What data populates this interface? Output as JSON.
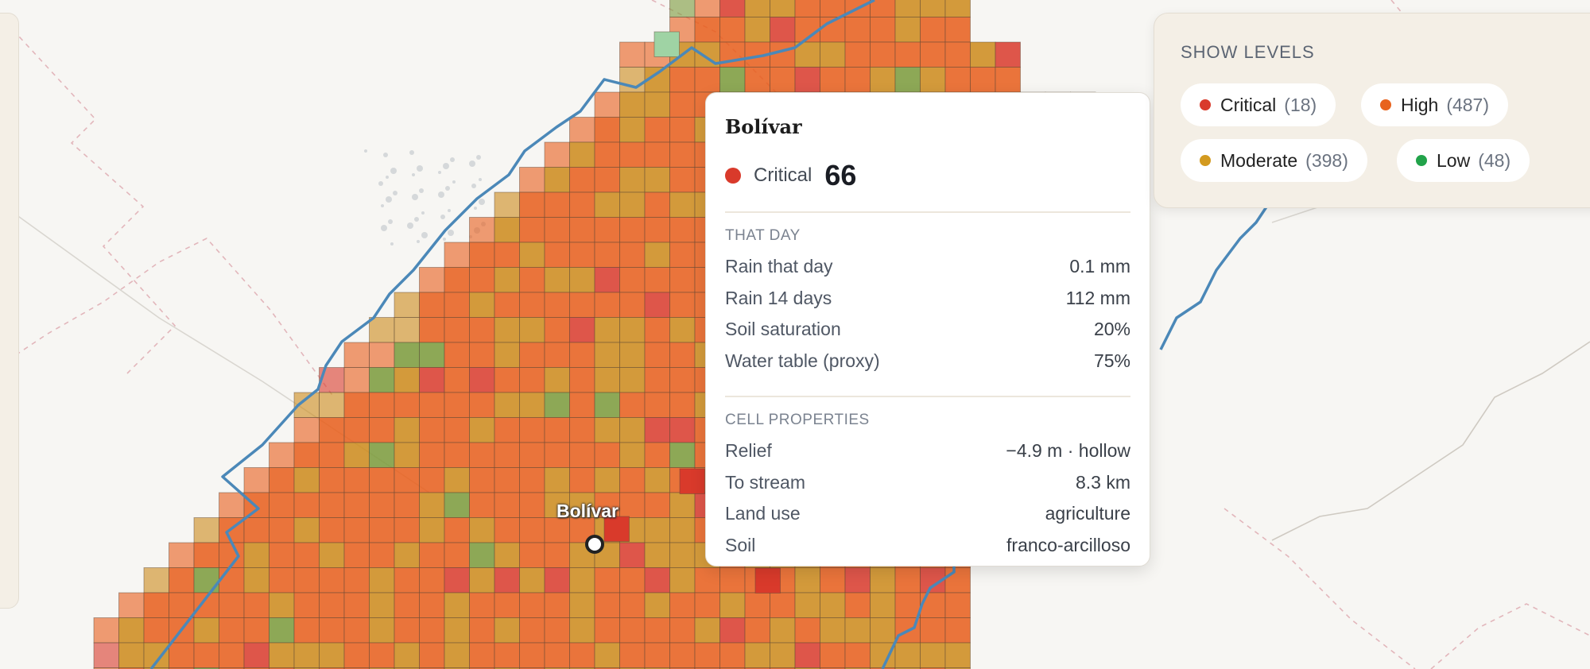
{
  "map": {
    "town_label": "Bolívar",
    "colors": {
      "critical": "#d93a2b",
      "high": "#e85d1a",
      "moderate": "#cc8a1a",
      "low": "#22a34a",
      "boundary": "#4b88b8",
      "background": "#f7f6f3"
    }
  },
  "popup": {
    "title": "Bolívar",
    "risk_level": "Critical",
    "risk_score": "66",
    "that_day": {
      "heading": "THAT DAY",
      "rows": [
        {
          "label": "Rain that day",
          "value": "0.1 mm"
        },
        {
          "label": "Rain 14 days",
          "value": "112 mm"
        },
        {
          "label": "Soil saturation",
          "value": "20%"
        },
        {
          "label": "Water table (proxy)",
          "value": "75%"
        }
      ]
    },
    "cell_properties": {
      "heading": "CELL PROPERTIES",
      "rows": [
        {
          "label": "Relief",
          "value": "−4.9 m · hollow"
        },
        {
          "label": "To stream",
          "value": "8.3 km"
        },
        {
          "label": "Land use",
          "value": "agriculture"
        },
        {
          "label": "Soil",
          "value": "franco-arcilloso"
        }
      ]
    }
  },
  "legend": {
    "title": "SHOW LEVELS",
    "items": [
      {
        "label": "Critical",
        "count": "(18)",
        "color": "#d93a2b"
      },
      {
        "label": "High",
        "count": "(487)",
        "color": "#e8631e"
      },
      {
        "label": "Moderate",
        "count": "(398)",
        "color": "#d39a1f"
      },
      {
        "label": "Low",
        "count": "(48)",
        "color": "#22a34a"
      }
    ]
  }
}
